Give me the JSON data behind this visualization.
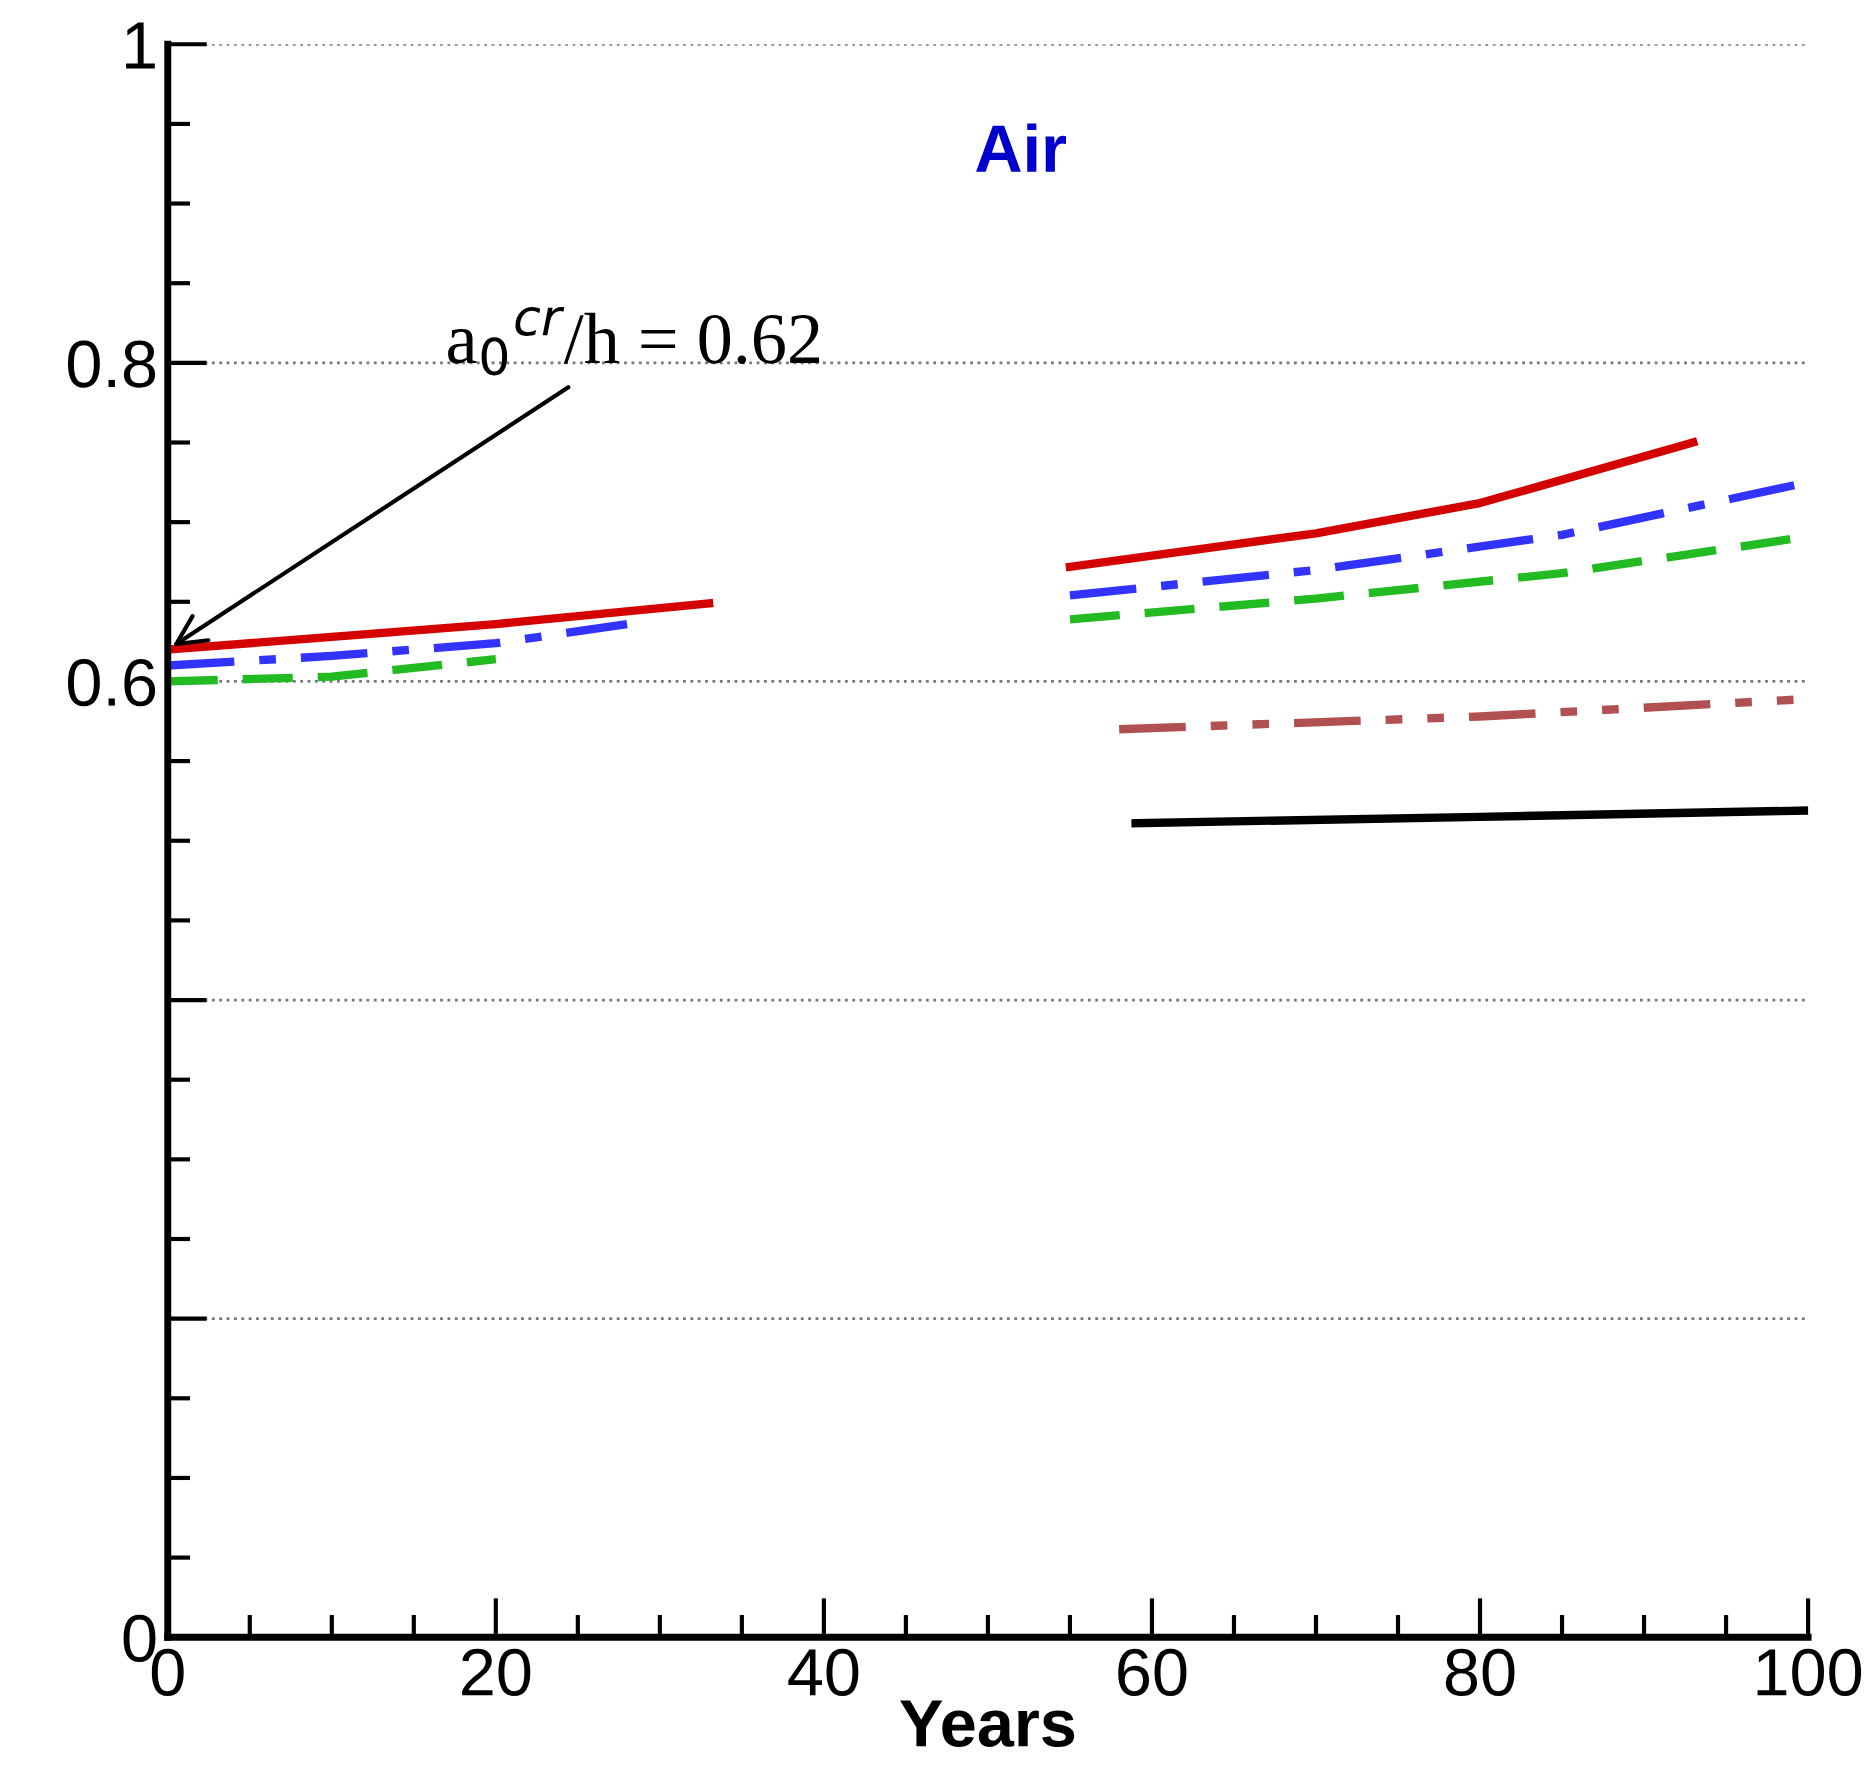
{
  "chart_data": {
    "type": "line",
    "title": "Air",
    "xlabel": "Years",
    "xlim": [
      0,
      100
    ],
    "ylim": [
      0,
      1
    ],
    "xticks": [
      0,
      20,
      40,
      60,
      80,
      100
    ],
    "yticks": [
      0,
      {
        "value": 0.2,
        "label": null
      },
      {
        "value": 0.4,
        "label": null
      },
      0.6,
      0.8,
      1
    ],
    "grid": "y",
    "marker": "none",
    "annotations": [
      {
        "text": "a$_{0}$$^{cr}$/h = 0.62",
        "x": 0,
        "y": 0.62
      }
    ],
    "series": [
      {
        "color": "#d40000",
        "line_style": "solid",
        "x": [
          0,
          10,
          20,
          33,
          44,
          55,
          70,
          80,
          93
        ],
        "values": [
          0.62,
          0.628,
          0.636,
          0.649,
          null,
          0.672,
          0.693,
          0.712,
          0.75
        ]
      },
      {
        "color": "#3333ff",
        "line_style": "dashdot",
        "x": [
          0,
          10,
          20,
          28,
          42,
          55,
          70,
          85,
          100
        ],
        "values": [
          0.61,
          0.616,
          0.624,
          0.636,
          null,
          0.654,
          0.67,
          0.692,
          0.725
        ]
      },
      {
        "color": "#22bb22",
        "line_style": "dashed",
        "x": [
          0,
          10,
          20,
          38,
          55,
          70,
          85,
          100
        ],
        "values": [
          0.6,
          0.603,
          0.614,
          null,
          0.639,
          0.652,
          0.668,
          0.691
        ]
      },
      {
        "color": "#b05050",
        "line_style": "dashdotdot",
        "x": [
          58,
          80,
          100
        ],
        "values": [
          0.57,
          0.578,
          0.589
        ]
      },
      {
        "color": "#000000",
        "line_style": "solid",
        "x": [
          59,
          80,
          100
        ],
        "values": [
          0.511,
          0.515,
          0.519
        ]
      }
    ]
  }
}
